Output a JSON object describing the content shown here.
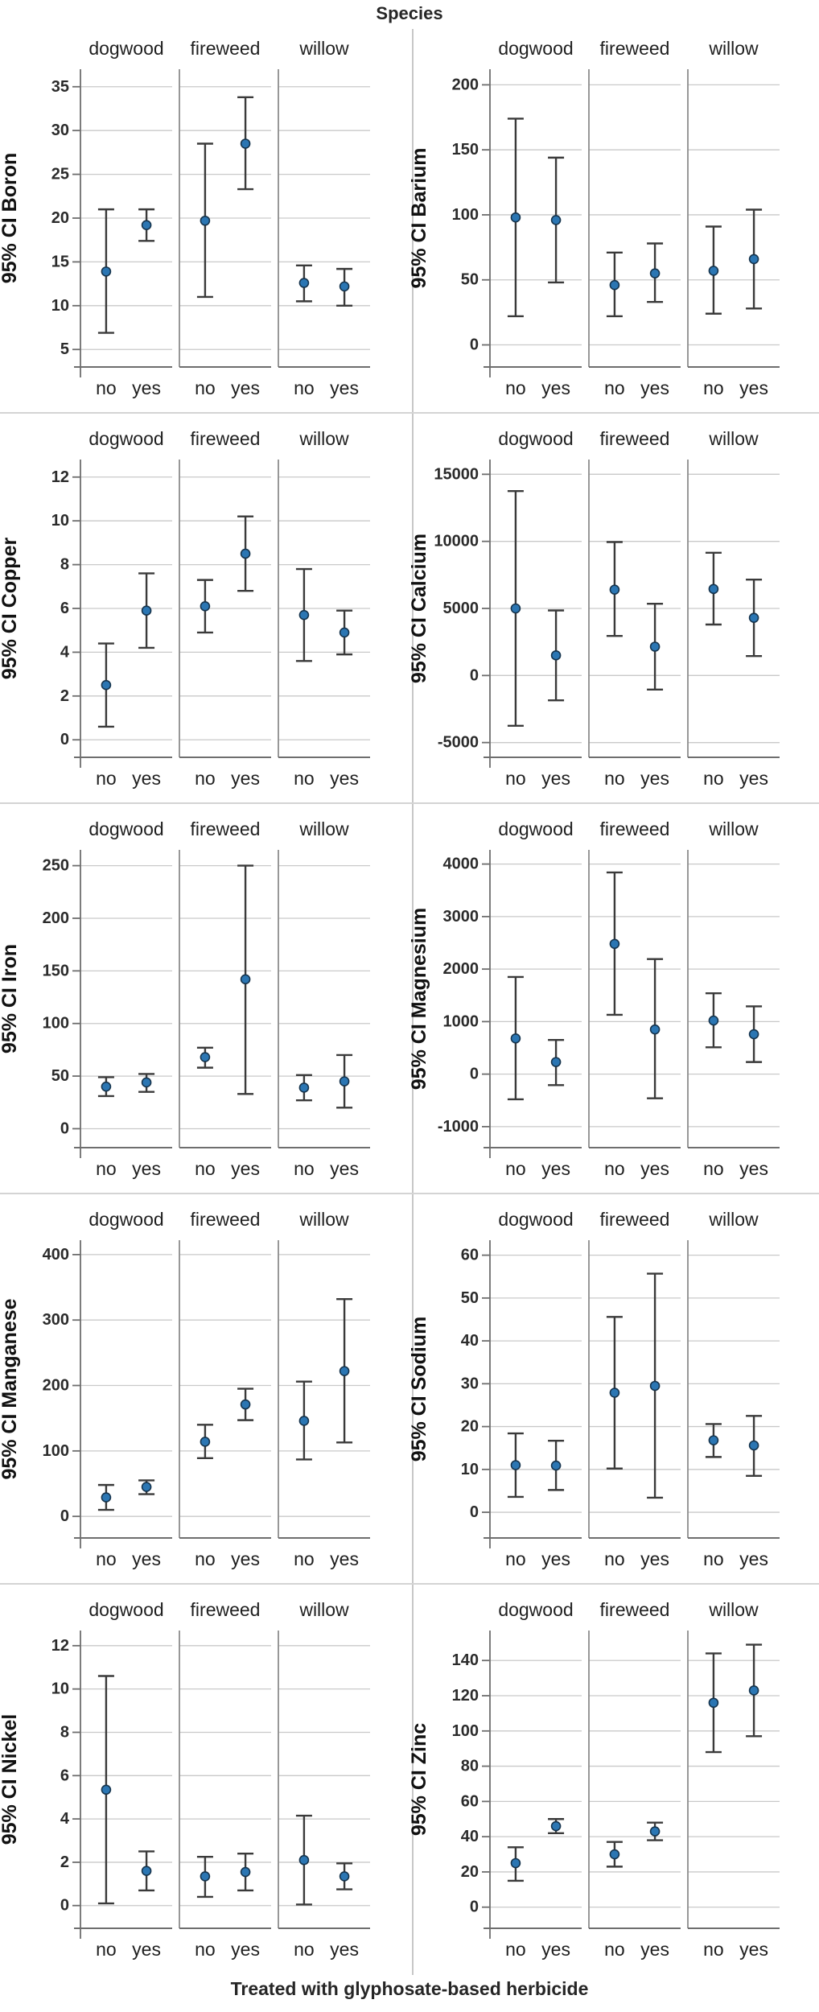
{
  "title": "Species",
  "x_axis_title": "Treated with glyphosate-based herbicide",
  "facet_labels": [
    "dogwood",
    "fireweed",
    "willow"
  ],
  "x_categories": [
    "no",
    "yes"
  ],
  "style": {
    "marker_fill": "#2b76b3",
    "marker_edge": "#16344d",
    "errorbar_color": "#3a3a3a",
    "gridline_color": "#c9c9c9",
    "axis_color": "#6e6e6e",
    "separator_color": "#8c8c8c",
    "divider_color": "#c7c7c7"
  },
  "chart_data": [
    {
      "type": "errorbar",
      "id": "boron",
      "ylabel": "95% CI Boron",
      "yticks": [
        5,
        10,
        15,
        20,
        25,
        30,
        35
      ],
      "ylim": [
        3,
        37
      ],
      "grid": true,
      "series": [
        {
          "facet": "dogwood",
          "points": [
            {
              "x": "no",
              "mean": 13.9,
              "lo": 6.9,
              "hi": 21.0
            },
            {
              "x": "yes",
              "mean": 19.2,
              "lo": 17.4,
              "hi": 21.0
            }
          ]
        },
        {
          "facet": "fireweed",
          "points": [
            {
              "x": "no",
              "mean": 19.7,
              "lo": 11.0,
              "hi": 28.5
            },
            {
              "x": "yes",
              "mean": 28.5,
              "lo": 23.3,
              "hi": 33.8
            }
          ]
        },
        {
          "facet": "willow",
          "points": [
            {
              "x": "no",
              "mean": 12.6,
              "lo": 10.5,
              "hi": 14.6
            },
            {
              "x": "yes",
              "mean": 12.2,
              "lo": 10.0,
              "hi": 14.2
            }
          ]
        }
      ]
    },
    {
      "type": "errorbar",
      "id": "barium",
      "ylabel": "95% CI Barium",
      "yticks": [
        0,
        50,
        100,
        150,
        200
      ],
      "ylim": [
        -17,
        212
      ],
      "grid": true,
      "series": [
        {
          "facet": "dogwood",
          "points": [
            {
              "x": "no",
              "mean": 98,
              "lo": 22,
              "hi": 174
            },
            {
              "x": "yes",
              "mean": 96,
              "lo": 48,
              "hi": 144
            }
          ]
        },
        {
          "facet": "fireweed",
          "points": [
            {
              "x": "no",
              "mean": 46,
              "lo": 22,
              "hi": 71
            },
            {
              "x": "yes",
              "mean": 55,
              "lo": 33,
              "hi": 78
            }
          ]
        },
        {
          "facet": "willow",
          "points": [
            {
              "x": "no",
              "mean": 57,
              "lo": 24,
              "hi": 91
            },
            {
              "x": "yes",
              "mean": 66,
              "lo": 28,
              "hi": 104
            }
          ]
        }
      ]
    },
    {
      "type": "errorbar",
      "id": "copper",
      "ylabel": "95% CI Copper",
      "yticks": [
        0,
        2,
        4,
        6,
        8,
        10,
        12
      ],
      "ylim": [
        -0.8,
        12.8
      ],
      "grid": true,
      "series": [
        {
          "facet": "dogwood",
          "points": [
            {
              "x": "no",
              "mean": 2.5,
              "lo": 0.6,
              "hi": 4.4
            },
            {
              "x": "yes",
              "mean": 5.9,
              "lo": 4.2,
              "hi": 7.6
            }
          ]
        },
        {
          "facet": "fireweed",
          "points": [
            {
              "x": "no",
              "mean": 6.1,
              "lo": 4.9,
              "hi": 7.3
            },
            {
              "x": "yes",
              "mean": 8.5,
              "lo": 6.8,
              "hi": 10.2
            }
          ]
        },
        {
          "facet": "willow",
          "points": [
            {
              "x": "no",
              "mean": 5.7,
              "lo": 3.6,
              "hi": 7.8
            },
            {
              "x": "yes",
              "mean": 4.9,
              "lo": 3.9,
              "hi": 5.9
            }
          ]
        }
      ]
    },
    {
      "type": "errorbar",
      "id": "calcium",
      "ylabel": "95% CI Calcium",
      "yticks": [
        -5000,
        0,
        5000,
        10000,
        15000
      ],
      "ylim": [
        -6100,
        16100
      ],
      "grid": true,
      "series": [
        {
          "facet": "dogwood",
          "points": [
            {
              "x": "no",
              "mean": 5000,
              "lo": -3750,
              "hi": 13750
            },
            {
              "x": "yes",
              "mean": 1500,
              "lo": -1850,
              "hi": 4850
            }
          ]
        },
        {
          "facet": "fireweed",
          "points": [
            {
              "x": "no",
              "mean": 6400,
              "lo": 2950,
              "hi": 9950
            },
            {
              "x": "yes",
              "mean": 2150,
              "lo": -1050,
              "hi": 5350
            }
          ]
        },
        {
          "facet": "willow",
          "points": [
            {
              "x": "no",
              "mean": 6450,
              "lo": 3800,
              "hi": 9150
            },
            {
              "x": "yes",
              "mean": 4300,
              "lo": 1450,
              "hi": 7150
            }
          ]
        }
      ]
    },
    {
      "type": "errorbar",
      "id": "iron",
      "ylabel": "95% CI Iron",
      "yticks": [
        0,
        50,
        100,
        150,
        200,
        250
      ],
      "ylim": [
        -18,
        265
      ],
      "grid": true,
      "series": [
        {
          "facet": "dogwood",
          "points": [
            {
              "x": "no",
              "mean": 40,
              "lo": 31,
              "hi": 49
            },
            {
              "x": "yes",
              "mean": 44,
              "lo": 35,
              "hi": 52
            }
          ]
        },
        {
          "facet": "fireweed",
          "points": [
            {
              "x": "no",
              "mean": 68,
              "lo": 58,
              "hi": 77
            },
            {
              "x": "yes",
              "mean": 142,
              "lo": 33,
              "hi": 250
            }
          ]
        },
        {
          "facet": "willow",
          "points": [
            {
              "x": "no",
              "mean": 39,
              "lo": 27,
              "hi": 51
            },
            {
              "x": "yes",
              "mean": 45,
              "lo": 20,
              "hi": 70
            }
          ]
        }
      ]
    },
    {
      "type": "errorbar",
      "id": "magnesium",
      "ylabel": "95% CI Magnesium",
      "yticks": [
        -1000,
        0,
        1000,
        2000,
        3000,
        4000
      ],
      "ylim": [
        -1400,
        4270
      ],
      "grid": true,
      "series": [
        {
          "facet": "dogwood",
          "points": [
            {
              "x": "no",
              "mean": 680,
              "lo": -480,
              "hi": 1850
            },
            {
              "x": "yes",
              "mean": 230,
              "lo": -210,
              "hi": 650
            }
          ]
        },
        {
          "facet": "fireweed",
          "points": [
            {
              "x": "no",
              "mean": 2480,
              "lo": 1130,
              "hi": 3840
            },
            {
              "x": "yes",
              "mean": 850,
              "lo": -460,
              "hi": 2190
            }
          ]
        },
        {
          "facet": "willow",
          "points": [
            {
              "x": "no",
              "mean": 1020,
              "lo": 510,
              "hi": 1540
            },
            {
              "x": "yes",
              "mean": 760,
              "lo": 230,
              "hi": 1290
            }
          ]
        }
      ]
    },
    {
      "type": "errorbar",
      "id": "manganese",
      "ylabel": "95% CI Manganese",
      "yticks": [
        0,
        100,
        200,
        300,
        400
      ],
      "ylim": [
        -33,
        422
      ],
      "grid": true,
      "series": [
        {
          "facet": "dogwood",
          "points": [
            {
              "x": "no",
              "mean": 29,
              "lo": 10,
              "hi": 48
            },
            {
              "x": "yes",
              "mean": 45,
              "lo": 34,
              "hi": 55
            }
          ]
        },
        {
          "facet": "fireweed",
          "points": [
            {
              "x": "no",
              "mean": 114,
              "lo": 89,
              "hi": 140
            },
            {
              "x": "yes",
              "mean": 171,
              "lo": 147,
              "hi": 195
            }
          ]
        },
        {
          "facet": "willow",
          "points": [
            {
              "x": "no",
              "mean": 146,
              "lo": 87,
              "hi": 206
            },
            {
              "x": "yes",
              "mean": 222,
              "lo": 113,
              "hi": 332
            }
          ]
        }
      ]
    },
    {
      "type": "errorbar",
      "id": "sodium",
      "ylabel": "95% CI Sodium",
      "yticks": [
        0,
        10,
        20,
        30,
        40,
        50,
        60
      ],
      "ylim": [
        -6,
        63.5
      ],
      "grid": true,
      "series": [
        {
          "facet": "dogwood",
          "points": [
            {
              "x": "no",
              "mean": 11.0,
              "lo": 3.6,
              "hi": 18.4
            },
            {
              "x": "yes",
              "mean": 10.9,
              "lo": 5.2,
              "hi": 16.7
            }
          ]
        },
        {
          "facet": "fireweed",
          "points": [
            {
              "x": "no",
              "mean": 27.9,
              "lo": 10.2,
              "hi": 45.6
            },
            {
              "x": "yes",
              "mean": 29.5,
              "lo": 3.4,
              "hi": 55.7
            }
          ]
        },
        {
          "facet": "willow",
          "points": [
            {
              "x": "no",
              "mean": 16.8,
              "lo": 12.9,
              "hi": 20.6
            },
            {
              "x": "yes",
              "mean": 15.6,
              "lo": 8.5,
              "hi": 22.5
            }
          ]
        }
      ]
    },
    {
      "type": "errorbar",
      "id": "nickel",
      "ylabel": "95% CI Nickel",
      "yticks": [
        0,
        2,
        4,
        6,
        8,
        10,
        12
      ],
      "ylim": [
        -1.05,
        12.7
      ],
      "grid": true,
      "series": [
        {
          "facet": "dogwood",
          "points": [
            {
              "x": "no",
              "mean": 5.35,
              "lo": 0.1,
              "hi": 10.6
            },
            {
              "x": "yes",
              "mean": 1.6,
              "lo": 0.7,
              "hi": 2.5
            }
          ]
        },
        {
          "facet": "fireweed",
          "points": [
            {
              "x": "no",
              "mean": 1.35,
              "lo": 0.4,
              "hi": 2.25
            },
            {
              "x": "yes",
              "mean": 1.55,
              "lo": 0.7,
              "hi": 2.4
            }
          ]
        },
        {
          "facet": "willow",
          "points": [
            {
              "x": "no",
              "mean": 2.1,
              "lo": 0.05,
              "hi": 4.15
            },
            {
              "x": "yes",
              "mean": 1.35,
              "lo": 0.75,
              "hi": 1.95
            }
          ]
        }
      ]
    },
    {
      "type": "errorbar",
      "id": "zinc",
      "ylabel": "95% CI Zinc",
      "yticks": [
        0,
        20,
        40,
        60,
        80,
        100,
        120,
        140
      ],
      "ylim": [
        -12,
        157
      ],
      "grid": true,
      "series": [
        {
          "facet": "dogwood",
          "points": [
            {
              "x": "no",
              "mean": 25,
              "lo": 15,
              "hi": 34
            },
            {
              "x": "yes",
              "mean": 46,
              "lo": 42,
              "hi": 50
            }
          ]
        },
        {
          "facet": "fireweed",
          "points": [
            {
              "x": "no",
              "mean": 30,
              "lo": 23,
              "hi": 37
            },
            {
              "x": "yes",
              "mean": 43,
              "lo": 38,
              "hi": 48
            }
          ]
        },
        {
          "facet": "willow",
          "points": [
            {
              "x": "no",
              "mean": 116,
              "lo": 88,
              "hi": 144
            },
            {
              "x": "yes",
              "mean": 123,
              "lo": 97,
              "hi": 149
            }
          ]
        }
      ]
    }
  ]
}
